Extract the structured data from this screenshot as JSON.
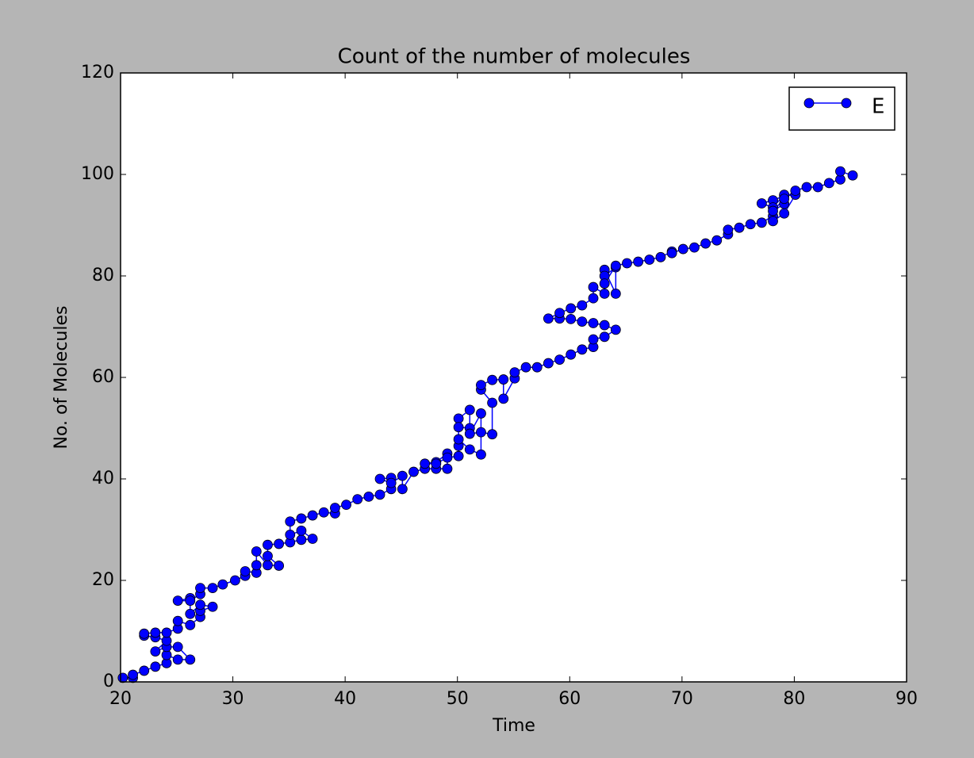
{
  "chart_data": {
    "type": "line",
    "title": "Count of the number of molecules",
    "x_label": "Time",
    "y_label": "No. of Molecules",
    "xlim": [
      20,
      90
    ],
    "xticks": [
      20,
      30,
      40,
      50,
      60,
      70,
      80,
      90
    ],
    "ylim": [
      0,
      120
    ],
    "yticks": [
      0,
      20,
      40,
      60,
      80,
      100,
      120
    ],
    "legend": "upper right",
    "series": [
      {
        "name": "E",
        "color": "#0000ff",
        "x": [
          20.2,
          21.1,
          21.1,
          22.1,
          23.1,
          24.1,
          24.1,
          25.1,
          26.2,
          25.1,
          24.1,
          23.1,
          24.1,
          23.1,
          22.1,
          22.1,
          23.1,
          24.1,
          25.1,
          25.1,
          26.2,
          27.1,
          27.1,
          28.2,
          27.1,
          26.2,
          26.2,
          25.1,
          26.2,
          27.1,
          27.1,
          28.2,
          29.1,
          30.2,
          31.1,
          31.1,
          32.1,
          32.1,
          32.1,
          33.1,
          34.1,
          33.1,
          33.1,
          34.1,
          35.1,
          36.1,
          37.1,
          36.1,
          35.1,
          35.1,
          36.1,
          37.1,
          38.1,
          39.1,
          39.1,
          40.1,
          41.1,
          42.1,
          43.1,
          44.1,
          44.1,
          43.1,
          44.1,
          45.1,
          45.1,
          46.1,
          47.1,
          48.1,
          49.1,
          49.1,
          48.1,
          47.1,
          48.1,
          49.1,
          50.1,
          50.1,
          50.1,
          51.1,
          51.1,
          50.1,
          50.1,
          51.1,
          52.1,
          52.1,
          51.1,
          52.1,
          53.1,
          53.1,
          52.1,
          52.1,
          53.1,
          54.1,
          54.1,
          55.1,
          55.1,
          56.1,
          57.1,
          58.1,
          59.1,
          60.1,
          61.1,
          62.1,
          62.1,
          63.1,
          64.1,
          63.1,
          62.1,
          61.1,
          60.1,
          59.1,
          58.1,
          59.1,
          60.1,
          61.1,
          62.1,
          62.1,
          63.1,
          63.1,
          64.1,
          64.1,
          63.1,
          63.1,
          64.1,
          65.1,
          66.1,
          67.1,
          68.1,
          69.1,
          69.1,
          70.1,
          71.1,
          72.1,
          73.1,
          74.1,
          74.1,
          75.1,
          76.1,
          77.1,
          78.1,
          78.1,
          79.1,
          80.1,
          79.1,
          78.1,
          77.1,
          78.1,
          79.1,
          79.1,
          78.1,
          79.1,
          80.1,
          81.1,
          82.1,
          83.1,
          84.1,
          84.1,
          85.2
        ],
        "values": [
          0.8,
          0.8,
          1.4,
          2.2,
          3.0,
          3.7,
          5.3,
          4.4,
          4.4,
          6.9,
          6.9,
          6.0,
          8.1,
          8.8,
          9.1,
          9.5,
          9.7,
          9.7,
          10.5,
          12.0,
          11.2,
          12.8,
          14.0,
          14.8,
          15.2,
          13.4,
          16.5,
          16.0,
          16.0,
          17.3,
          18.5,
          18.5,
          19.2,
          20.0,
          20.9,
          21.8,
          21.5,
          23.0,
          25.7,
          23.0,
          22.9,
          24.8,
          27.0,
          27.2,
          27.5,
          28.0,
          28.2,
          29.8,
          29.0,
          31.6,
          32.2,
          32.8,
          33.4,
          33.2,
          34.3,
          34.9,
          36.0,
          36.5,
          36.9,
          38.0,
          40.2,
          40.0,
          39.2,
          40.6,
          38.0,
          41.4,
          42.0,
          42.0,
          42.0,
          45.0,
          43.3,
          43.0,
          43.0,
          44.2,
          44.5,
          46.5,
          51.9,
          53.6,
          50.0,
          50.2,
          47.8,
          45.8,
          44.8,
          52.9,
          48.9,
          49.2,
          48.8,
          55.0,
          57.6,
          58.5,
          59.5,
          59.6,
          55.8,
          59.8,
          61.0,
          62.0,
          62.0,
          62.8,
          63.5,
          64.5,
          65.5,
          66.0,
          67.5,
          68.0,
          69.4,
          70.3,
          70.7,
          71.0,
          71.5,
          71.6,
          71.6,
          72.7,
          73.6,
          74.2,
          75.6,
          77.8,
          76.5,
          81.2,
          76.5,
          81.7,
          80.0,
          78.5,
          82.0,
          82.5,
          82.8,
          83.2,
          83.7,
          84.8,
          84.5,
          85.3,
          85.6,
          86.4,
          87.0,
          88.2,
          89.1,
          89.5,
          90.2,
          90.5,
          91.8,
          90.8,
          92.3,
          96.0,
          95.8,
          94.9,
          94.3,
          93.5,
          96.0,
          94.2,
          92.8,
          95.2,
          96.8,
          97.5,
          97.5,
          98.3,
          99.0,
          100.6,
          99.8
        ]
      }
    ]
  }
}
